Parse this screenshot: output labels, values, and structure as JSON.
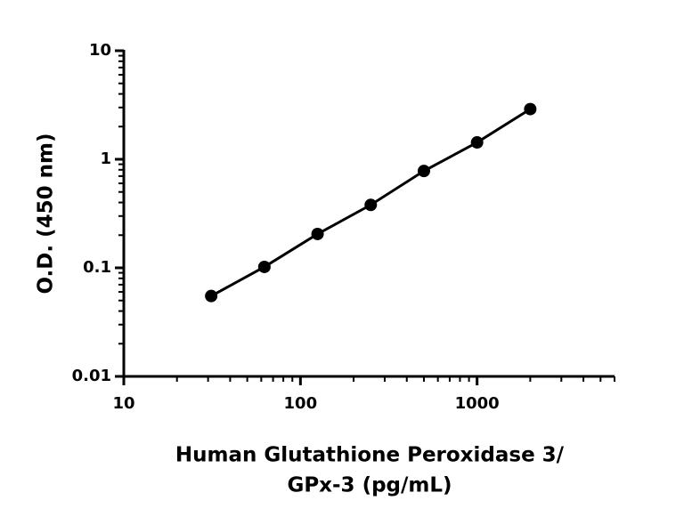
{
  "chart_data": {
    "type": "scatter",
    "x_label": [
      "Human Glutathione Peroxidase 3/",
      "GPx-3 (pg/mL)"
    ],
    "y_label": "O.D. (450 nm)",
    "x_scale": "log",
    "y_scale": "log",
    "xlim": [
      10,
      6000
    ],
    "xticks": [
      10,
      100,
      1000
    ],
    "ylim": [
      0.01,
      10
    ],
    "yticks": [
      0.01,
      0.1,
      1,
      10
    ],
    "color": "#000000",
    "fit_line": true,
    "x": [
      31.25,
      62.5,
      125,
      250,
      500,
      1000,
      2000
    ],
    "values": [
      0.055,
      0.102,
      0.205,
      0.38,
      0.78,
      1.43,
      2.9
    ]
  }
}
